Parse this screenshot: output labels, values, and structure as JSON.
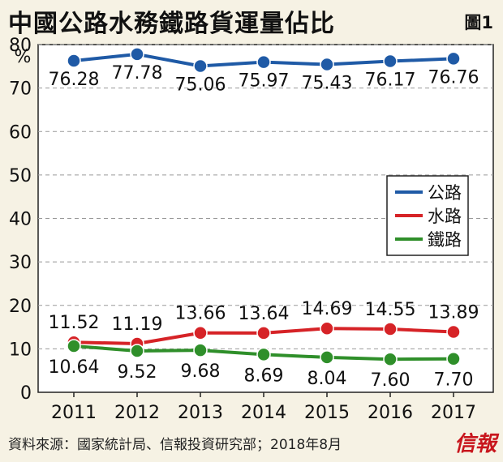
{
  "title": "中國公路水務鐵路貨運量佔比",
  "figure_label": "圖1",
  "source": "資料來源：國家統計局、信報投資研究部；2018年8月",
  "logo_text": "信報",
  "colors": {
    "highway": "#1f5aa6",
    "waterway": "#d62327",
    "railway": "#2f8f2a",
    "plot_bg": "#ffffff",
    "page_bg": "#f6f2e4"
  },
  "chart_data": {
    "type": "line",
    "ylabel": "%",
    "ylim": [
      0,
      80
    ],
    "yticks": [
      0,
      10,
      20,
      30,
      40,
      50,
      60,
      70,
      80
    ],
    "grid": true,
    "legend_position": "right",
    "categories": [
      "2011",
      "2012",
      "2013",
      "2014",
      "2015",
      "2016",
      "2017"
    ],
    "series": [
      {
        "name": "公路",
        "color": "#1f5aa6",
        "labels": [
          "76.28",
          "77.78",
          "75.06",
          "75.97",
          "75.43",
          "76.17",
          "76.76"
        ],
        "values": [
          76.28,
          77.78,
          75.06,
          75.97,
          75.43,
          76.17,
          76.76
        ]
      },
      {
        "name": "水路",
        "color": "#d62327",
        "labels": [
          "11.52",
          "11.19",
          "13.66",
          "13.64",
          "14.69",
          "14.55",
          "13.89"
        ],
        "values": [
          11.52,
          11.19,
          13.66,
          13.64,
          14.69,
          14.55,
          13.89
        ]
      },
      {
        "name": "鐵路",
        "color": "#2f8f2a",
        "labels": [
          "10.64",
          "9.52",
          "9.68",
          "8.69",
          "8.04",
          "7.60",
          "7.70"
        ],
        "values": [
          10.64,
          9.52,
          9.68,
          8.69,
          8.04,
          7.6,
          7.7
        ]
      }
    ]
  }
}
